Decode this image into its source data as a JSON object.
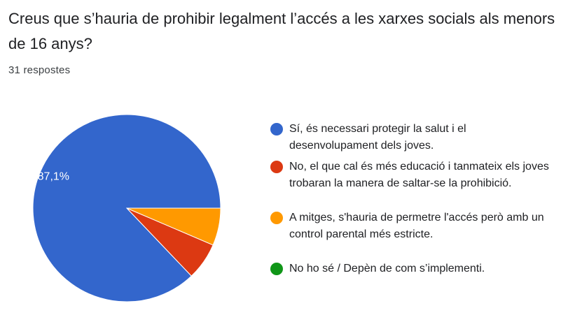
{
  "question": {
    "title": "Creus que s’hauria de prohibir legalment l’accés a les xarxes socials als menors de 16 anys?",
    "responses": "31 respostes"
  },
  "chart_data": {
    "type": "pie",
    "total": 31,
    "slices": [
      {
        "label": "Sí, és necessari protegir la salut i el desenvolupament dels joves.",
        "count": 27,
        "percent": 87.1,
        "value_label": "87,1%",
        "color": "#3366cc"
      },
      {
        "label": "No, el que cal és més educació i tanmateix els joves trobaran la manera de saltar-se la prohibició.",
        "count": 2,
        "percent": 6.5,
        "value_label": "",
        "color": "#dc3912"
      },
      {
        "label": "A mitges, s'hauria de permetre l'accés però amb un control parental més estricte.",
        "count": 2,
        "percent": 6.5,
        "value_label": "",
        "color": "#ff9900"
      },
      {
        "label": "No ho sé / Depèn de com s’implementi.",
        "count": 0,
        "percent": 0,
        "value_label": "",
        "color": "#109618"
      }
    ],
    "legend_position": "right"
  }
}
